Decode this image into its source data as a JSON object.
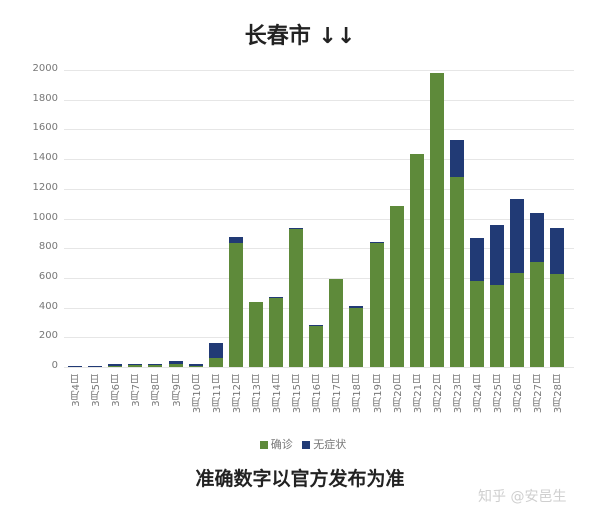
{
  "title": "长春市 ↓↓",
  "note": "准确数字以官方发布为准",
  "watermark": "知乎 @安邑生",
  "colors": {
    "confirmed": "#5e8a3a",
    "asymptomatic": "#213a75"
  },
  "chart_data": {
    "type": "bar",
    "stacked": true,
    "title": "长春市 ↓↓",
    "xlabel": "",
    "ylabel": "",
    "ylim": [
      0,
      2000
    ],
    "yticks": [
      0,
      200,
      400,
      600,
      800,
      1000,
      1200,
      1400,
      1600,
      1800,
      2000
    ],
    "grid": true,
    "legend_position": "bottom",
    "categories": [
      "3月4日",
      "3月5日",
      "3月6日",
      "3月7日",
      "3月8日",
      "3月9日",
      "3月10日",
      "3月11日",
      "3月12日",
      "3月13日",
      "3月14日",
      "3月15日",
      "3月16日",
      "3月17日",
      "3月18日",
      "3月19日",
      "3月20日",
      "3月21日",
      "3月22日",
      "3月23日",
      "3月24日",
      "3月25日",
      "3月26日",
      "3月27日",
      "3月28日"
    ],
    "series": [
      {
        "name": "确诊",
        "color": "#5e8a3a",
        "values": [
          6,
          5,
          8,
          18,
          16,
          20,
          6,
          63,
          833,
          436,
          462,
          929,
          276,
          593,
          400,
          835,
          1082,
          1434,
          1978,
          1277,
          579,
          552,
          635,
          707,
          624
        ]
      },
      {
        "name": "无症状",
        "color": "#213a75",
        "values": [
          2,
          1,
          10,
          5,
          7,
          22,
          16,
          97,
          40,
          0,
          11,
          9,
          7,
          0,
          11,
          9,
          0,
          0,
          0,
          252,
          288,
          404,
          494,
          328,
          310
        ]
      }
    ]
  }
}
